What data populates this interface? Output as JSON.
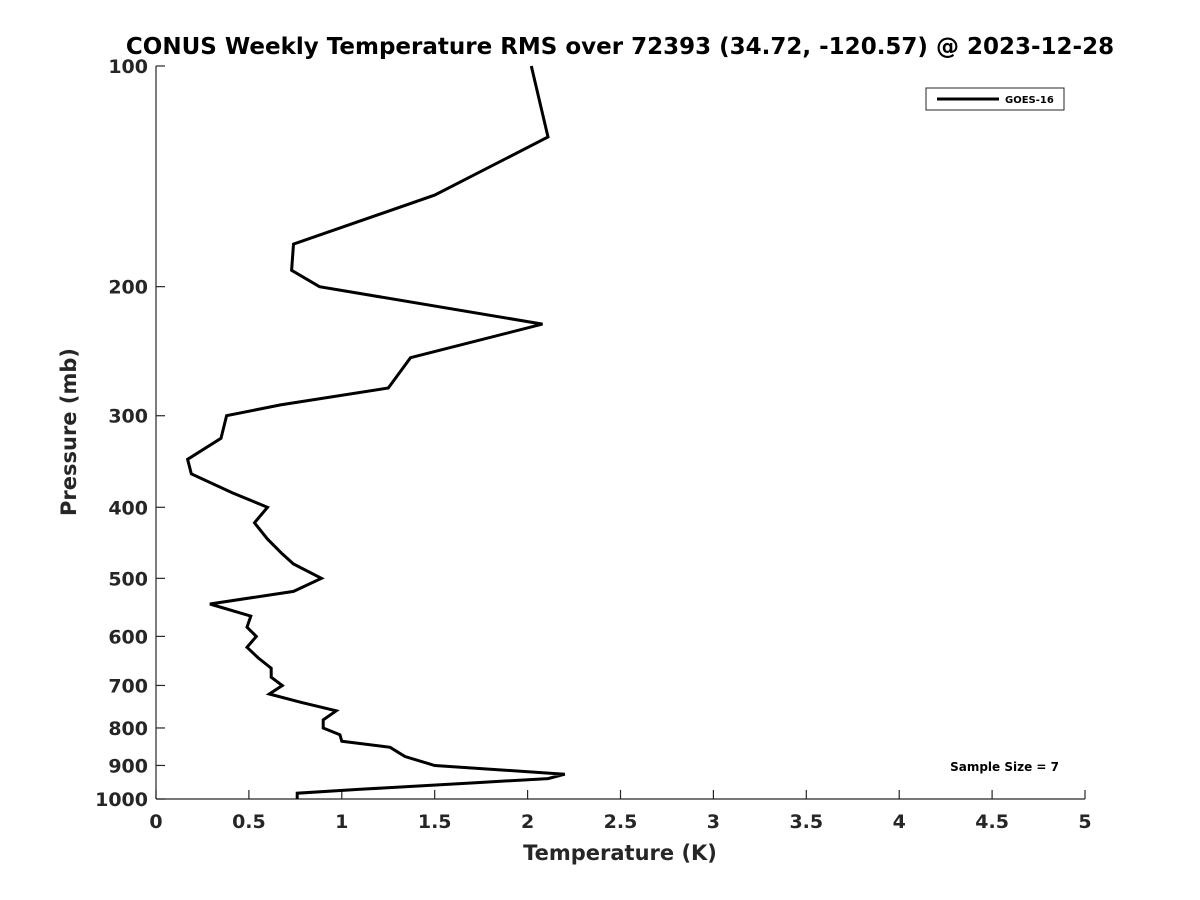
{
  "chart_data": {
    "type": "line",
    "title": "CONUS Weekly Temperature RMS over 72393 (34.72, -120.57) @ 2023-12-28",
    "xlabel": "Temperature (K)",
    "ylabel": "Pressure (mb)",
    "xlim": [
      0,
      5
    ],
    "ylim": [
      100,
      1000
    ],
    "y_scale": "log",
    "y_reversed": true,
    "grid": false,
    "legend_position": "top-right",
    "x_ticks": [
      "0",
      "0.5",
      "1",
      "1.5",
      "2",
      "2.5",
      "3",
      "3.5",
      "4",
      "4.5",
      "5"
    ],
    "y_ticks": [
      "100",
      "200",
      "300",
      "400",
      "500",
      "600",
      "700",
      "800",
      "900",
      "1000"
    ],
    "series": [
      {
        "name": "GOES-16",
        "color": "#000000",
        "points": [
          [
            2.02,
            100
          ],
          [
            2.11,
            125
          ],
          [
            1.5,
            150
          ],
          [
            0.74,
            175
          ],
          [
            0.73,
            190
          ],
          [
            0.88,
            200
          ],
          [
            2.08,
            225
          ],
          [
            1.37,
            250
          ],
          [
            1.25,
            275
          ],
          [
            0.67,
            290
          ],
          [
            0.38,
            300
          ],
          [
            0.35,
            322
          ],
          [
            0.17,
            344
          ],
          [
            0.19,
            360
          ],
          [
            0.41,
            382
          ],
          [
            0.6,
            400
          ],
          [
            0.53,
            420
          ],
          [
            0.6,
            442
          ],
          [
            0.68,
            463
          ],
          [
            0.74,
            478
          ],
          [
            0.89,
            500
          ],
          [
            0.74,
            521
          ],
          [
            0.29,
            542
          ],
          [
            0.51,
            563
          ],
          [
            0.49,
            583
          ],
          [
            0.54,
            600
          ],
          [
            0.49,
            621
          ],
          [
            0.55,
            642
          ],
          [
            0.62,
            663
          ],
          [
            0.62,
            682
          ],
          [
            0.68,
            700
          ],
          [
            0.61,
            719
          ],
          [
            0.78,
            738
          ],
          [
            0.97,
            758
          ],
          [
            0.9,
            780
          ],
          [
            0.9,
            800
          ],
          [
            0.99,
            817
          ],
          [
            1.0,
            834
          ],
          [
            1.26,
            850
          ],
          [
            1.34,
            875
          ],
          [
            1.5,
            900
          ],
          [
            2.2,
            925
          ],
          [
            2.11,
            938
          ],
          [
            1.72,
            950
          ],
          [
            1.1,
            970
          ],
          [
            0.76,
            982
          ],
          [
            0.76,
            1000
          ]
        ]
      }
    ],
    "annotation": "Sample Size = 7"
  }
}
